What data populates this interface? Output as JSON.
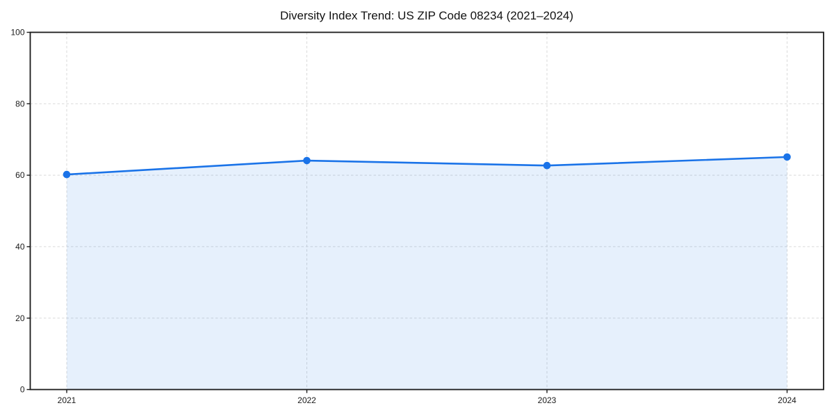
{
  "chart_data": {
    "type": "area",
    "title": "Diversity Index Trend: US ZIP Code 08234 (2021–2024)",
    "categories": [
      "2021",
      "2022",
      "2023",
      "2024"
    ],
    "values": [
      60.2,
      64.1,
      62.7,
      65.1
    ],
    "xlabel": "",
    "ylabel": "",
    "ylim": [
      0,
      100
    ],
    "yticks": [
      0,
      20,
      40,
      60,
      80,
      100
    ],
    "grid": true,
    "grid_style": "dashed",
    "legend": false,
    "marker": "circle",
    "colors": {
      "line": "#1a73e8",
      "area_fill": "#1a73e8",
      "area_fill_opacity": 0.11,
      "gridline": "#d9d9d9",
      "axis": "#1a1a1a",
      "tick_label": "#1a1a1a",
      "title": "#111111",
      "background": "#ffffff"
    }
  }
}
